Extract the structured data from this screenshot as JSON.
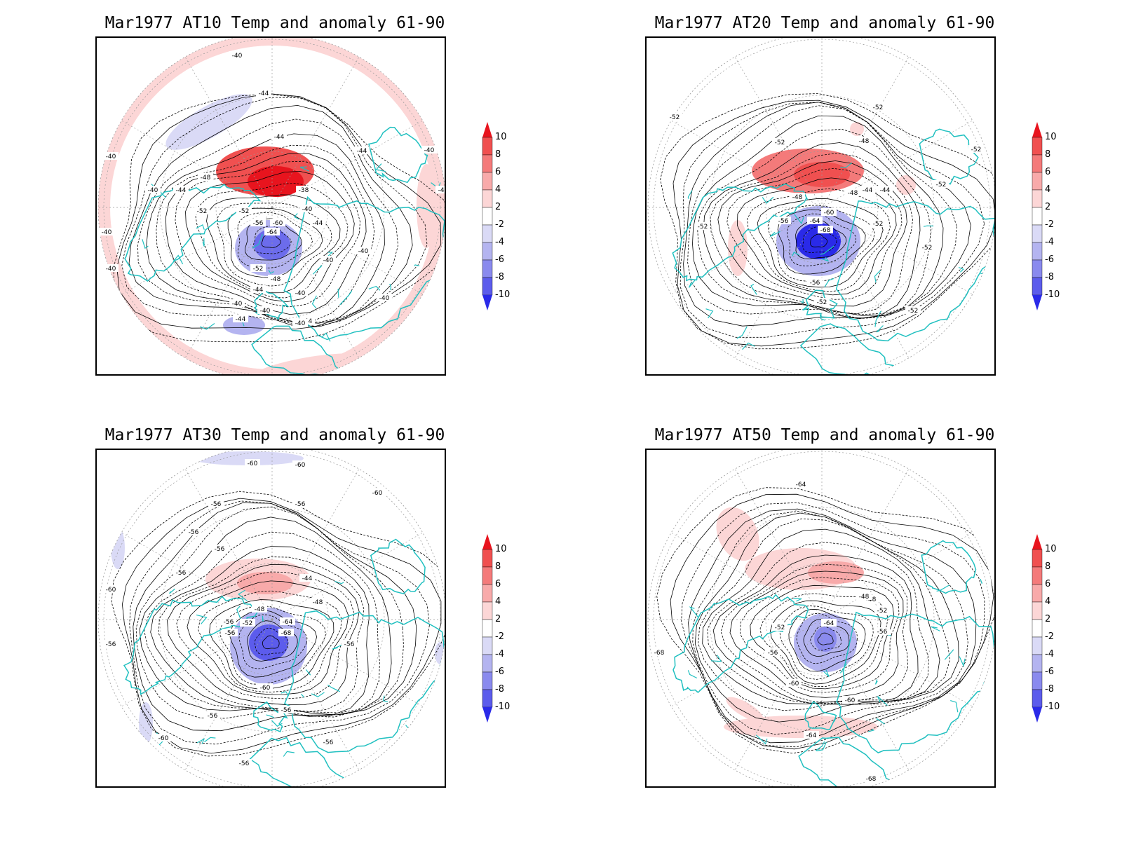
{
  "panels": [
    {
      "title": "Mar1977 AT10 Temp and anomaly 61-90",
      "contour_labels": [
        "-40",
        "-40",
        "-44",
        "-44",
        "-44",
        "-40",
        "-40",
        "-40",
        "-40",
        "-48",
        "-44",
        "-52",
        "-52",
        "-56",
        "-60",
        "-64",
        "-38",
        "-40",
        "-44",
        "-40",
        "-40",
        "-40",
        "-52",
        "-48",
        "-44",
        "-40",
        "-40",
        "-44",
        "-44",
        "-40",
        "-40",
        "-40"
      ]
    },
    {
      "title": "Mar1977 AT20 Temp and anomaly 61-90",
      "contour_labels": [
        "-52",
        "-52",
        "-52",
        "-48",
        "-52",
        "-44",
        "-48",
        "-44",
        "-48",
        "-60",
        "-64",
        "-68",
        "-56",
        "-52",
        "-52",
        "-52",
        "-56",
        "-52",
        "-52",
        "-52"
      ]
    },
    {
      "title": "Mar1977 AT30 Temp and anomaly 61-90",
      "contour_labels": [
        "-60",
        "-60",
        "-60",
        "-56",
        "-56",
        "-56",
        "-56",
        "-56",
        "-60",
        "-44",
        "-48",
        "-48",
        "-56",
        "-64",
        "-68",
        "-52",
        "-56",
        "-56",
        "-60",
        "-56",
        "-56",
        "-56",
        "-60",
        "-56",
        "-56"
      ]
    },
    {
      "title": "Mar1977 AT50 Temp and anomaly 61-90",
      "contour_labels": [
        "-64",
        "-48",
        "-52",
        "-64",
        "-52",
        "-56",
        "-48",
        "-56",
        "-60",
        "-60",
        "-64",
        "-68",
        "-68"
      ]
    }
  ],
  "colorbar": {
    "ticks": [
      "10",
      "8",
      "6",
      "4",
      "2",
      "-2",
      "-4",
      "-6",
      "-8",
      "-10"
    ],
    "colors": [
      "#e8141e",
      "#f05050",
      "#f47a7a",
      "#f8aaaa",
      "#fcd6d6",
      "#ffffff",
      "#dadaf6",
      "#b4b4f0",
      "#8a8aee",
      "#5c5cec",
      "#2a2ae8"
    ]
  },
  "colors": {
    "coast": "#20c0c0",
    "contour": "#000000",
    "grid": "#9a9a9a"
  }
}
